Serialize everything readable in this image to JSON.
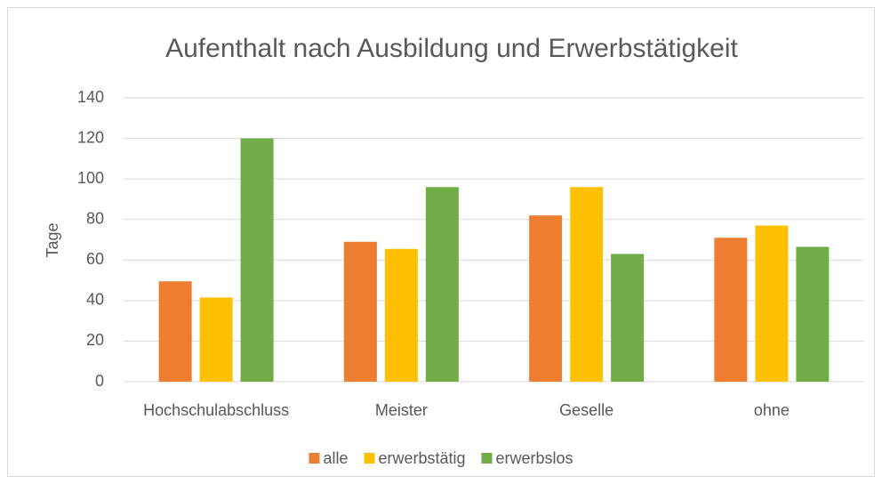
{
  "chart_data": {
    "type": "bar",
    "title": "Aufenthalt nach Ausbildung und Erwerbstätigkeit",
    "y_label": "Tage",
    "categories": [
      "Hochschulabschluss",
      "Meister",
      "Geselle",
      "ohne"
    ],
    "series": [
      {
        "name": "alle",
        "color": "#ed7d31",
        "values": [
          49.5,
          69,
          82,
          71
        ]
      },
      {
        "name": "erwerbstätig",
        "color": "#ffc000",
        "values": [
          41.5,
          65.5,
          96,
          77
        ]
      },
      {
        "name": "erwerbslos",
        "color": "#70ad47",
        "values": [
          120,
          96,
          63,
          66.5
        ]
      }
    ],
    "ylim": [
      0,
      140
    ],
    "yticks": [
      0,
      20,
      40,
      60,
      80,
      100,
      120,
      140
    ],
    "grid": true,
    "legend": "bottom"
  }
}
